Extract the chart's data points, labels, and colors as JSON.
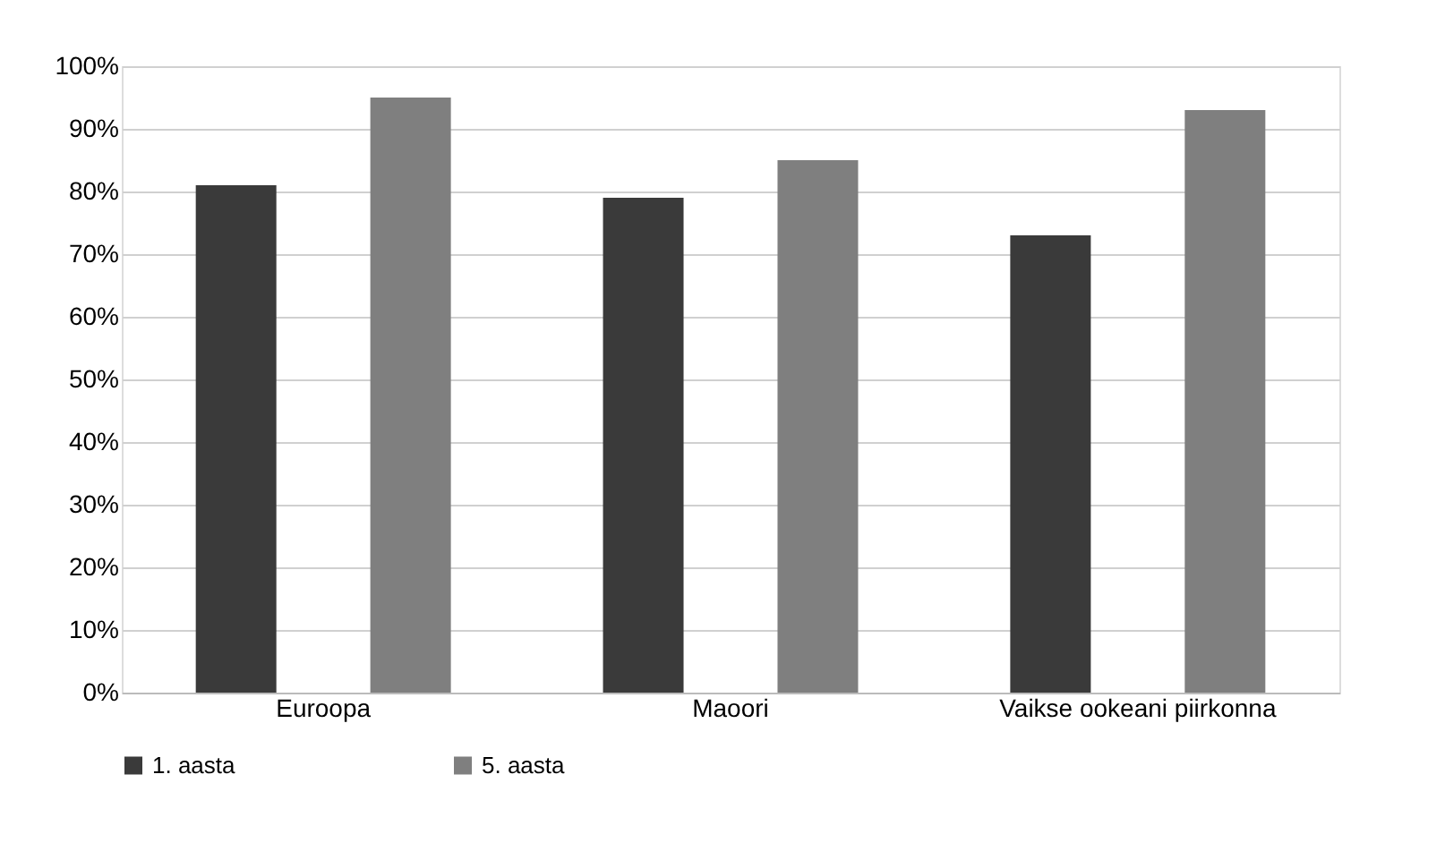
{
  "chart_data": {
    "type": "bar",
    "categories": [
      "Euroopa",
      "Maoori",
      "Vaikse ookeani piirkonna"
    ],
    "series": [
      {
        "name": "1. aasta",
        "color": "#3a3a3a",
        "values": [
          81,
          79,
          73
        ]
      },
      {
        "name": "5. aasta",
        "color": "#7f7f7f",
        "values": [
          95,
          85,
          93
        ]
      }
    ],
    "ylim": [
      0,
      100
    ],
    "yticks": [
      {
        "value": 0,
        "label": "0%"
      },
      {
        "value": 10,
        "label": "10%"
      },
      {
        "value": 20,
        "label": "20%"
      },
      {
        "value": 30,
        "label": "30%"
      },
      {
        "value": 40,
        "label": "40%"
      },
      {
        "value": 50,
        "label": "50%"
      },
      {
        "value": 60,
        "label": "60%"
      },
      {
        "value": 70,
        "label": "70%"
      },
      {
        "value": 80,
        "label": "80%"
      },
      {
        "value": 90,
        "label": "90%"
      },
      {
        "value": 100,
        "label": "100%"
      }
    ],
    "grid": "y",
    "legend": "bottom"
  }
}
